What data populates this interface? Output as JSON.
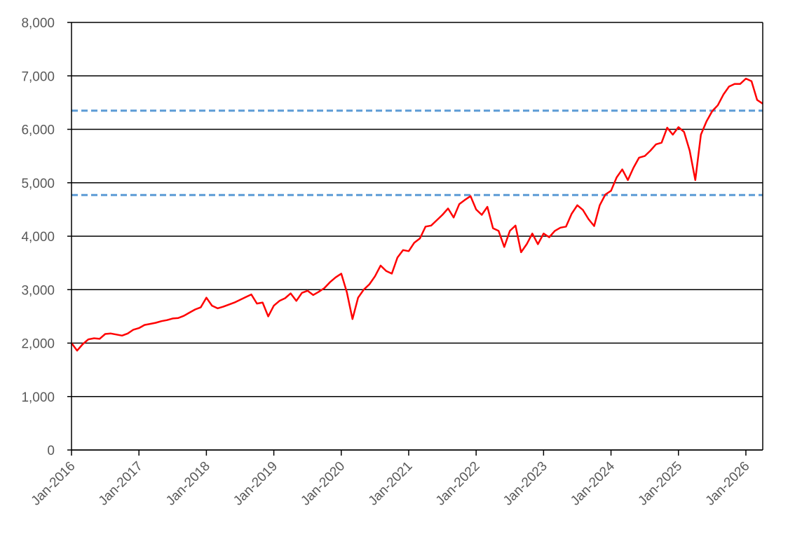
{
  "chart_data": {
    "type": "line",
    "title": "",
    "xlabel": "",
    "ylabel": "",
    "ylim": [
      0,
      8000
    ],
    "y_ticks": [
      0,
      1000,
      2000,
      3000,
      4000,
      5000,
      6000,
      7000,
      8000
    ],
    "y_tick_labels": [
      "0",
      "1,000",
      "2,000",
      "3,000",
      "4,000",
      "5,000",
      "6,000",
      "7,000",
      "8,000"
    ],
    "x_range": [
      "2016-01",
      "2026-04"
    ],
    "x_tick_labels": [
      "Jan-2016",
      "Jan-2017",
      "Jan-2018",
      "Jan-2019",
      "Jan-2020",
      "Jan-2021",
      "Jan-2022",
      "Jan-2023",
      "Jan-2024",
      "Jan-2025",
      "Jan-2026"
    ],
    "grid": "horizontal",
    "legend": "none",
    "series": [
      {
        "color": "#ff0000",
        "x": [
          "2016-01",
          "2016-02",
          "2016-03",
          "2016-04",
          "2016-05",
          "2016-06",
          "2016-07",
          "2016-08",
          "2016-09",
          "2016-10",
          "2016-11",
          "2016-12",
          "2017-01",
          "2017-02",
          "2017-03",
          "2017-04",
          "2017-05",
          "2017-06",
          "2017-07",
          "2017-08",
          "2017-09",
          "2017-10",
          "2017-11",
          "2017-12",
          "2018-01",
          "2018-02",
          "2018-03",
          "2018-04",
          "2018-05",
          "2018-06",
          "2018-07",
          "2018-08",
          "2018-09",
          "2018-10",
          "2018-11",
          "2018-12",
          "2019-01",
          "2019-02",
          "2019-03",
          "2019-04",
          "2019-05",
          "2019-06",
          "2019-07",
          "2019-08",
          "2019-09",
          "2019-10",
          "2019-11",
          "2019-12",
          "2020-01",
          "2020-02",
          "2020-03",
          "2020-04",
          "2020-05",
          "2020-06",
          "2020-07",
          "2020-08",
          "2020-09",
          "2020-10",
          "2020-11",
          "2020-12",
          "2021-01",
          "2021-02",
          "2021-03",
          "2021-04",
          "2021-05",
          "2021-06",
          "2021-07",
          "2021-08",
          "2021-09",
          "2021-10",
          "2021-11",
          "2021-12",
          "2022-01",
          "2022-02",
          "2022-03",
          "2022-04",
          "2022-05",
          "2022-06",
          "2022-07",
          "2022-08",
          "2022-09",
          "2022-10",
          "2022-11",
          "2022-12",
          "2023-01",
          "2023-02",
          "2023-03",
          "2023-04",
          "2023-05",
          "2023-06",
          "2023-07",
          "2023-08",
          "2023-09",
          "2023-10",
          "2023-11",
          "2023-12",
          "2024-01",
          "2024-02",
          "2024-03",
          "2024-04",
          "2024-05",
          "2024-06",
          "2024-07",
          "2024-08",
          "2024-09",
          "2024-10",
          "2024-11",
          "2024-12",
          "2025-01",
          "2025-02",
          "2025-03",
          "2025-04",
          "2025-05",
          "2025-06",
          "2025-07",
          "2025-08",
          "2025-09",
          "2025-10",
          "2025-11",
          "2025-12",
          "2026-01",
          "2026-02",
          "2026-03",
          "2026-04"
        ],
        "values": [
          2000,
          1860,
          1980,
          2070,
          2090,
          2080,
          2170,
          2180,
          2160,
          2140,
          2180,
          2250,
          2280,
          2340,
          2360,
          2380,
          2410,
          2430,
          2460,
          2470,
          2510,
          2570,
          2630,
          2670,
          2850,
          2700,
          2650,
          2680,
          2720,
          2760,
          2810,
          2860,
          2910,
          2740,
          2760,
          2500,
          2700,
          2790,
          2840,
          2930,
          2790,
          2940,
          2980,
          2900,
          2960,
          3030,
          3140,
          3230,
          3300,
          2950,
          2450,
          2850,
          3000,
          3100,
          3250,
          3450,
          3350,
          3300,
          3600,
          3740,
          3720,
          3880,
          3960,
          4180,
          4200,
          4300,
          4400,
          4520,
          4350,
          4600,
          4680,
          4750,
          4500,
          4400,
          4550,
          4150,
          4100,
          3800,
          4100,
          4200,
          3700,
          3850,
          4050,
          3850,
          4050,
          3980,
          4100,
          4160,
          4180,
          4420,
          4580,
          4490,
          4320,
          4190,
          4580,
          4780,
          4850,
          5100,
          5250,
          5050,
          5280,
          5470,
          5500,
          5600,
          5720,
          5750,
          6030,
          5900,
          6040,
          5950,
          5600,
          5050,
          5900,
          6150,
          6340,
          6450,
          6650,
          6800,
          6850,
          6850,
          6950,
          6900,
          6550,
          6480
        ]
      }
    ],
    "reference_lines": [
      {
        "y": 6350,
        "style": "dashed",
        "color": "#5b9bd5"
      },
      {
        "y": 4770,
        "style": "dashed",
        "color": "#5b9bd5"
      }
    ]
  }
}
